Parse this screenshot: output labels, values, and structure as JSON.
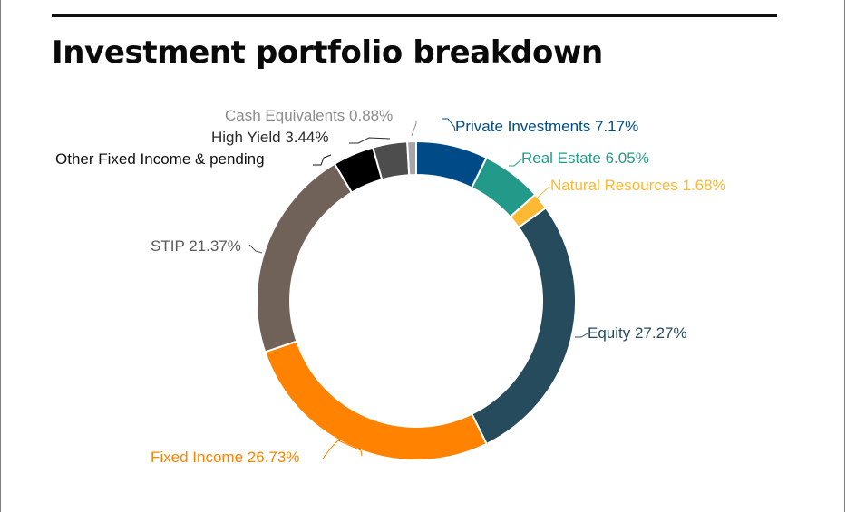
{
  "page": {
    "title": "Investment portfolio breakdown"
  },
  "chart_data": {
    "type": "pie",
    "variant": "donut",
    "title": "Investment portfolio breakdown",
    "unit": "%",
    "slices": [
      {
        "label": "Private Investments",
        "value": 7.17,
        "display": "Private Investments 7.17%",
        "color": "#004b87"
      },
      {
        "label": "Real Estate",
        "value": 6.05,
        "display": "Real Estate 6.05%",
        "color": "#239a89"
      },
      {
        "label": "Natural Resources",
        "value": 1.68,
        "display": "Natural Resources 1.68%",
        "color": "#fdb933"
      },
      {
        "label": "Equity",
        "value": 27.27,
        "display": "Equity 27.27%",
        "color": "#264b5d"
      },
      {
        "label": "Fixed Income",
        "value": 26.73,
        "display": "Fixed Income 26.73%",
        "color": "#ff8300"
      },
      {
        "label": "STIP",
        "value": 21.37,
        "display": "STIP 21.37%",
        "color": "#706259"
      },
      {
        "label": "Other Fixed Income & pending",
        "value": 4.11,
        "display": "Other Fixed Income & pending",
        "color": "#000000"
      },
      {
        "label": "High Yield",
        "value": 3.44,
        "display": "High Yield 3.44%",
        "color": "#4d4d4d"
      },
      {
        "label": "Cash Equivalents",
        "value": 0.88,
        "display": "Cash Equivalents 0.88%",
        "color": "#a6a6a6"
      }
    ],
    "label_colors": {
      "Private Investments": "#004b87",
      "Real Estate": "#239a89",
      "Natural Resources": "#fdb933",
      "Equity": "#264b5d",
      "Fixed Income": "#ff8300",
      "STIP": "#595959",
      "Other Fixed Income & pending": "#111111",
      "High Yield": "#2b2b2b",
      "Cash Equivalents": "#8c8c8c"
    },
    "legend": "none",
    "data_labels": "outside with leader lines",
    "start_angle": "12 o'clock",
    "direction": "clockwise"
  }
}
